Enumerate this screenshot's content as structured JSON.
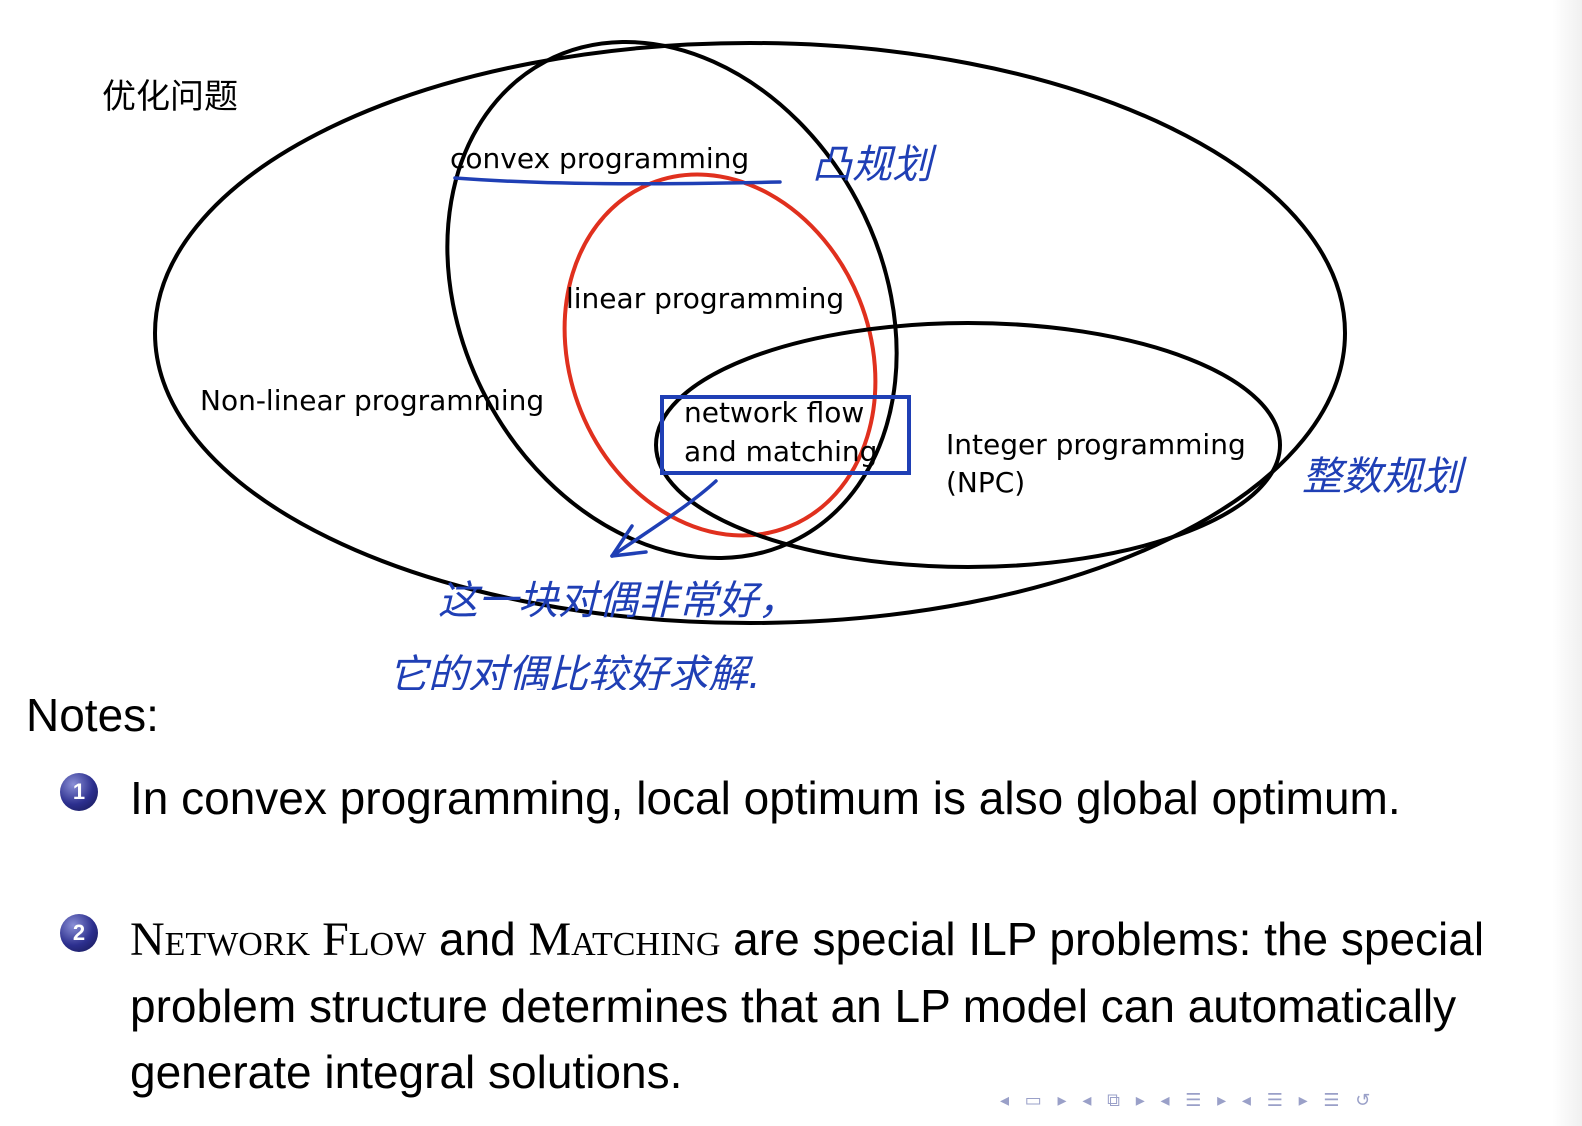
{
  "diagram": {
    "title": "优化问题",
    "labels": {
      "convex": "convex programming",
      "linear": "linear programming",
      "nonlinear": "Non-linear programming",
      "network_line1": "network flow",
      "network_line2": "and matching",
      "integer_line1": "Integer programming",
      "integer_line2": "(NPC)"
    },
    "annotations": {
      "convex_note": "凸规划",
      "integer_note": "整数规划",
      "network_note_line1": "这一块对偶非常好，",
      "network_note_line2": "它的对偶比较好求解."
    },
    "colors": {
      "outline": "#000000",
      "linear": "#e0301e",
      "annotation": "#1f3fb5"
    }
  },
  "notes": {
    "heading": "Notes:",
    "items": [
      {
        "number": "1",
        "text": "In convex programming, local optimum is also global optimum."
      },
      {
        "number": "2",
        "sc1": "Network Flow",
        "mid": " and ",
        "sc2": "Matching",
        "rest": " are special ILP problems: the special problem structure determines that an LP model can automatically generate integral solutions."
      }
    ]
  },
  "nav": {
    "icons": [
      "nav-prev-frame-icon",
      "nav-frame-icon",
      "nav-next-frame-icon",
      "nav-prev-subsection-icon",
      "nav-subsection-icon",
      "nav-next-subsection-icon",
      "nav-prev-section-icon",
      "nav-section-icon",
      "nav-next-section-icon",
      "nav-appendix-icon",
      "nav-search-icon"
    ]
  }
}
